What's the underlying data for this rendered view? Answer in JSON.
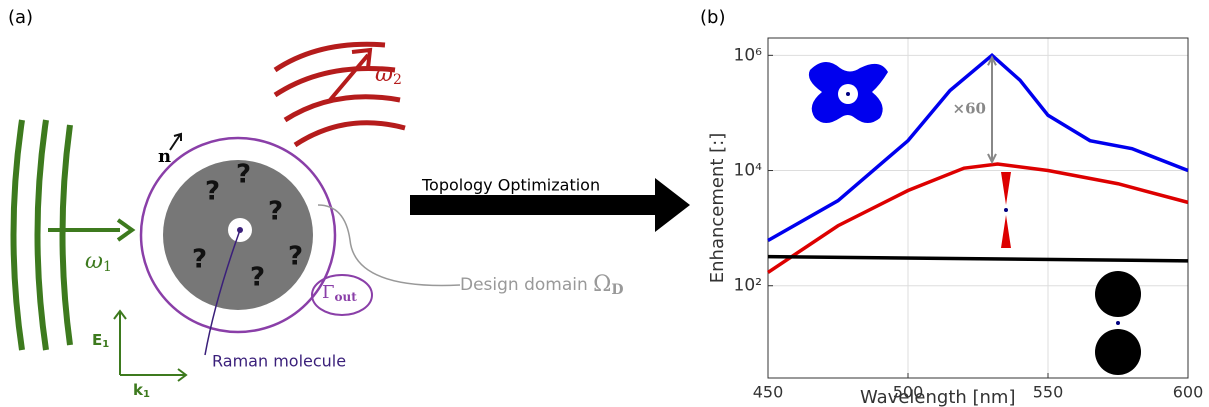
{
  "diagram": {
    "panel_label": "(a)",
    "arrow_label": "Topology Optimization",
    "design_domain": "Design domain",
    "design_symbol": "Ω",
    "design_sub": "D",
    "molecule": "Raman molecule",
    "omega1": "ω",
    "omega1_sub": "1",
    "omega2": "ω",
    "omega2_sub": "2",
    "gamma": "Γ",
    "gamma_sub": "out",
    "normal": "n",
    "field": "E",
    "field_sub": "1",
    "wavevector": "k",
    "wavevector_sub": "1",
    "question_marks": [
      "?",
      "?",
      "?",
      "?",
      "?",
      "?"
    ]
  },
  "chart_data": {
    "type": "line",
    "panel_label": "(b)",
    "x_label": "Wavelength [nm]",
    "y_label": "Enhancement [:]",
    "xlim": [
      450,
      600
    ],
    "xticks": [
      450,
      500,
      550,
      600
    ],
    "ylim": [
      2.5,
      2000000
    ],
    "log_y": true,
    "grid": true,
    "yticks": [
      {
        "value": 100,
        "label": "10²"
      },
      {
        "value": 10000,
        "label": "10⁴"
      },
      {
        "value": 1000000,
        "label": "10⁶"
      }
    ],
    "annotation": "×60",
    "series": [
      {
        "color": "#0000ee",
        "x": [
          450,
          475,
          500,
          515,
          530,
          540,
          550,
          565,
          580,
          600
        ],
        "values": [
          610,
          3000,
          33000,
          245000,
          1000000,
          370000,
          91000,
          33000,
          24000,
          10000
        ]
      },
      {
        "color": "#dd0000",
        "x": [
          450,
          475,
          500,
          520,
          532,
          550,
          575,
          600
        ],
        "values": [
          170,
          1100,
          4500,
          11000,
          13000,
          10000,
          5900,
          2800
        ]
      },
      {
        "color": "#000000",
        "x": [
          450,
          600
        ],
        "values": [
          320,
          270
        ]
      }
    ]
  }
}
